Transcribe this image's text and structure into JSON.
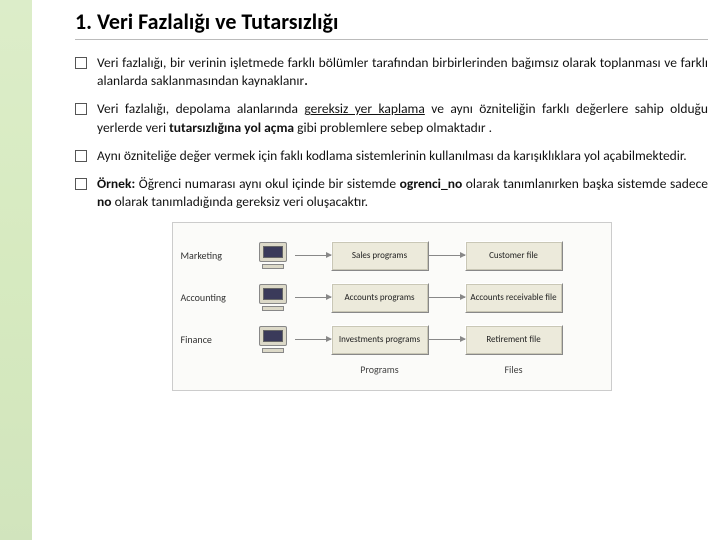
{
  "title": "1. Veri Fazlalığı ve Tutarsızlığı",
  "bullets": [
    {
      "pre": "Veri fazlalığı, bir verinin işletmede farklı bölümler tarafından birbirlerinden bağımsız olarak toplanması ve farklı alanlarda saklanmasından kaynaklanır",
      "bold1": ".",
      "mid": "",
      "ul": "",
      "post": ""
    },
    {
      "pre": "Veri fazlalığı, depolama alanlarında ",
      "bold1": "",
      "mid": "",
      "ul": "gereksiz yer kaplama",
      "post": " ve aynı özniteliğin farklı değerlere sahip olduğu yerlerde veri ",
      "bold2": "tutarsızlığına yol açma",
      "post2": " gibi problemlere sebep olmaktadır ."
    },
    {
      "pre": "Aynı özniteliğe değer vermek için faklı kodlama sistemlerinin kullanılması da karışıklıklara yol açabilmektedir.",
      "bold1": "",
      "mid": "",
      "ul": "",
      "post": ""
    },
    {
      "pre": "",
      "bold1": "Örnek:",
      "mid": " Öğrenci numarası aynı okul içinde bir sistemde ",
      "bold2": "ogrenci_no",
      "post": " olarak tanımlanırken başka sistemde sadece ",
      "bold3": "no",
      "post2": " olarak tanımladığında gereksiz veri oluşacaktır."
    }
  ],
  "diagram": {
    "rows": [
      {
        "dept": "Marketing",
        "program": "Sales programs",
        "file": "Customer file"
      },
      {
        "dept": "Accounting",
        "program": "Accounts programs",
        "file": "Accounts receivable file"
      },
      {
        "dept": "Finance",
        "program": "Investments programs",
        "file": "Retirement file"
      }
    ],
    "col_programs": "Programs",
    "col_files": "Files"
  }
}
